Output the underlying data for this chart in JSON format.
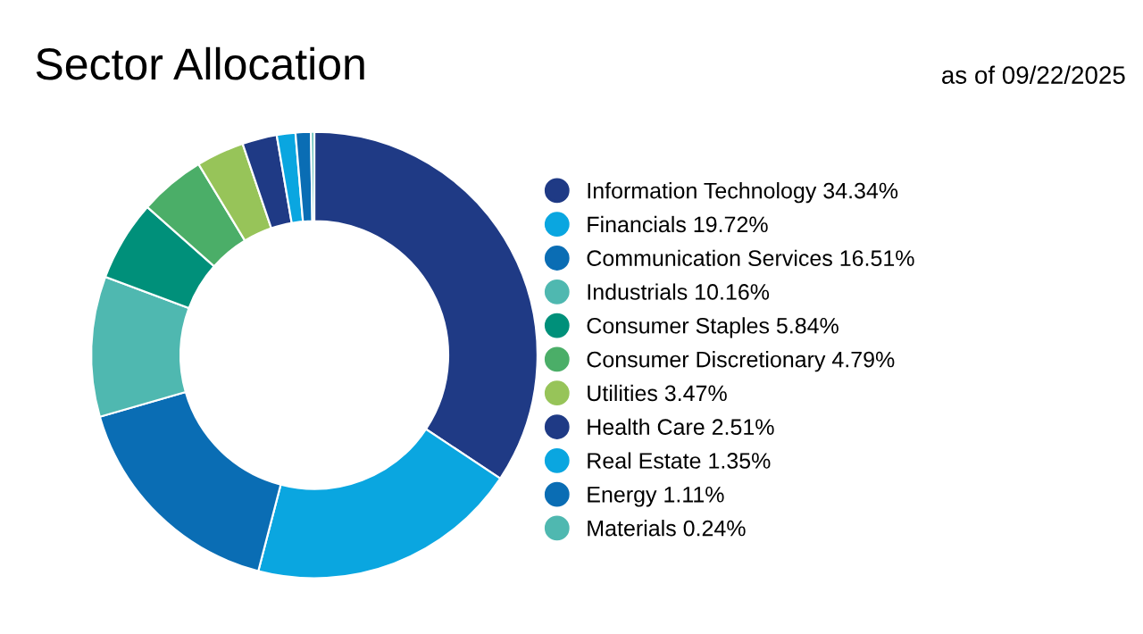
{
  "chart_data": {
    "type": "donut",
    "title": "Sector Allocation",
    "annotations": [
      "as of 09/22/2025"
    ],
    "categories": [
      "Information Technology",
      "Financials",
      "Communication Services",
      "Industrials",
      "Consumer Staples",
      "Consumer Discretionary",
      "Utilities",
      "Health Care",
      "Real Estate",
      "Energy",
      "Materials"
    ],
    "values": [
      34.34,
      19.72,
      16.51,
      10.16,
      5.84,
      4.79,
      3.47,
      2.51,
      1.35,
      1.11,
      0.24
    ],
    "value_labels": [
      "34.34%",
      "19.72%",
      "16.51%",
      "10.16%",
      "5.84%",
      "4.79%",
      "3.47%",
      "2.51%",
      "1.35%",
      "1.11%",
      "0.24%"
    ],
    "colors": [
      "#1f3a85",
      "#0aa6e0",
      "#0a6db4",
      "#4fb8b0",
      "#00907a",
      "#4bae68",
      "#97c459",
      "#1f3a85",
      "#0aa6e0",
      "#0a6db4",
      "#4fb8b0"
    ],
    "legend": "right"
  }
}
